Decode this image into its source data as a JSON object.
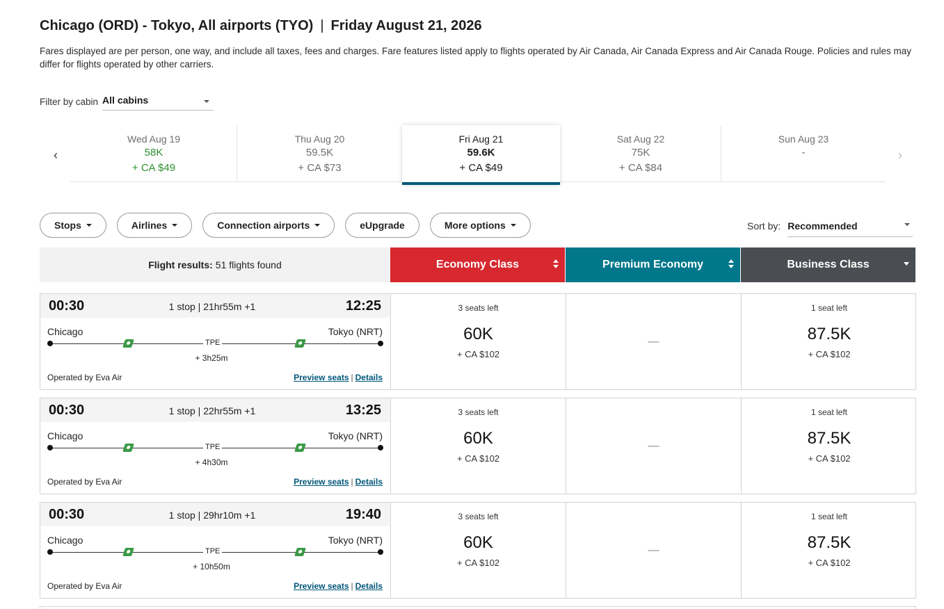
{
  "header": {
    "route": "Chicago (ORD) - Tokyo, All airports (TYO)",
    "separator": "|",
    "date": "Friday August 21, 2026",
    "disclaimer": "Fares displayed are per person, one way, and include all taxes, fees and charges. Fare features listed apply to flights operated by Air Canada, Air Canada Express and Air Canada Rouge. Policies and rules may differ for flights operated by other carriers."
  },
  "cabin_filter": {
    "label": "Filter by cabin",
    "value": "All cabins"
  },
  "date_strip": {
    "dates": [
      {
        "date": "Wed Aug 19",
        "points": "58K",
        "cash": "+ CA $49",
        "state": "lowest"
      },
      {
        "date": "Thu Aug 20",
        "points": "59.5K",
        "cash": "+ CA $73",
        "state": "normal"
      },
      {
        "date": "Fri Aug 21",
        "points": "59.6K",
        "cash": "+ CA $49",
        "state": "selected"
      },
      {
        "date": "Sat Aug 22",
        "points": "75K",
        "cash": "+ CA $84",
        "state": "normal"
      },
      {
        "date": "Sun Aug 23",
        "points": "-",
        "cash": "",
        "state": "normal"
      }
    ],
    "prev_icon": "chevron-left-icon",
    "next_icon": "chevron-right-icon"
  },
  "filters": {
    "stops": "Stops",
    "airlines": "Airlines",
    "connection_airports": "Connection airports",
    "eupgrade": "eUpgrade",
    "more_options": "More options"
  },
  "sort": {
    "label": "Sort by:",
    "value": "Recommended"
  },
  "columns": {
    "results_label": "Flight results:",
    "results_count": "51 flights found",
    "economy": "Economy Class",
    "premium": "Premium Economy",
    "business": "Business Class"
  },
  "colors": {
    "economy": "#d7282f",
    "premium": "#00778b",
    "business": "#4a4d52",
    "lowest_fare": "#2f8f2f",
    "selected_underline": "#005a78",
    "link": "#00577a"
  },
  "flights": [
    {
      "depart": "00:30",
      "arrive": "12:25",
      "summary": "1 stop | 21hr55m +1",
      "origin": "Chicago",
      "destination": "Tokyo (NRT)",
      "stop": "TPE",
      "layover": "+ 3h25m",
      "operated_by": "Operated by Eva Air",
      "preview": "Preview seats",
      "details": "Details",
      "link_sep": "|",
      "economy": {
        "seats": "3 seats left",
        "points": "60K",
        "cash": "+ CA $102"
      },
      "premium": {
        "dash": "—"
      },
      "business": {
        "seats": "1 seat left",
        "points": "87.5K",
        "cash": "+ CA $102"
      }
    },
    {
      "depart": "00:30",
      "arrive": "13:25",
      "summary": "1 stop | 22hr55m +1",
      "origin": "Chicago",
      "destination": "Tokyo (NRT)",
      "stop": "TPE",
      "layover": "+ 4h30m",
      "operated_by": "Operated by Eva Air",
      "preview": "Preview seats",
      "details": "Details",
      "link_sep": "|",
      "economy": {
        "seats": "3 seats left",
        "points": "60K",
        "cash": "+ CA $102"
      },
      "premium": {
        "dash": "—"
      },
      "business": {
        "seats": "1 seat left",
        "points": "87.5K",
        "cash": "+ CA $102"
      }
    },
    {
      "depart": "00:30",
      "arrive": "19:40",
      "summary": "1 stop | 29hr10m +1",
      "origin": "Chicago",
      "destination": "Tokyo (NRT)",
      "stop": "TPE",
      "layover": "+ 10h50m",
      "operated_by": "Operated by Eva Air",
      "preview": "Preview seats",
      "details": "Details",
      "link_sep": "|",
      "economy": {
        "seats": "3 seats left",
        "points": "60K",
        "cash": "+ CA $102"
      },
      "premium": {
        "dash": "—"
      },
      "business": {
        "seats": "1 seat left",
        "points": "87.5K",
        "cash": "+ CA $102"
      }
    }
  ]
}
